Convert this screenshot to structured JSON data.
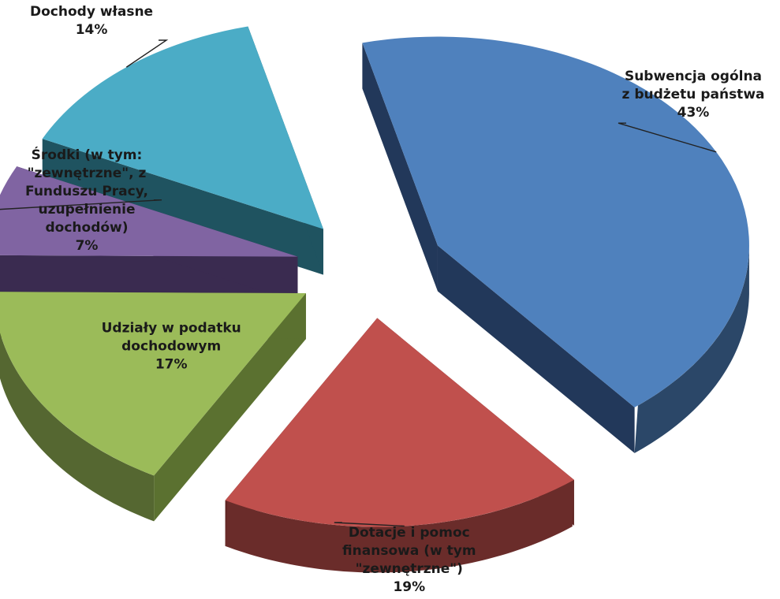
{
  "chart_data": {
    "type": "pie",
    "style": "3d-exploded",
    "slices": [
      {
        "label_lines": [
          "Subwencja ogólna",
          "z budżetu państwa",
          "43%"
        ],
        "value": 43,
        "color": "#4F81BD",
        "dark": "#22385A"
      },
      {
        "label_lines": [
          "Dotacje i pomoc",
          "finansowa (w tym",
          "\"zewnętrzne\")",
          "19%"
        ],
        "value": 19,
        "color": "#C0504D",
        "dark": "#5E2422"
      },
      {
        "label_lines": [
          "Udziały w podatku",
          "dochodowym",
          "17%"
        ],
        "value": 17,
        "color": "#9BBB59",
        "dark": "#5B7130"
      },
      {
        "label_lines": [
          "Środki (w tym:",
          "\"zewnętrzne\", z",
          "Funduszu Pracy,",
          "uzupełnienie",
          "dochodów)",
          "7%"
        ],
        "value": 7,
        "color": "#8064A2",
        "dark": "#3A2B50"
      },
      {
        "label_lines": [
          "Dochody własne",
          "14%"
        ],
        "value": 14,
        "color": "#4BACC6",
        "dark": "#1F5360"
      }
    ],
    "legend": "none"
  }
}
